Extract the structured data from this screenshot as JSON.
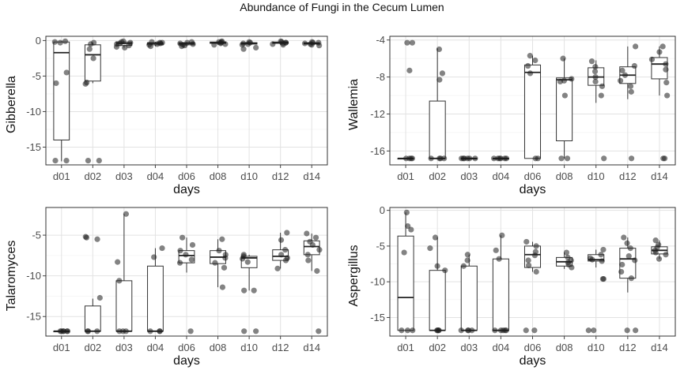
{
  "title": "Abundance of Fungi in the Cecum Lumen",
  "chart_data": [
    {
      "type": "boxplot",
      "panel": "top-left",
      "ylabel": "Gibberella",
      "xlabel": "days",
      "categories": [
        "d01",
        "d02",
        "d03",
        "d04",
        "d06",
        "d08",
        "d10",
        "d12",
        "d14"
      ],
      "ylim": [
        -17.5,
        0.6
      ],
      "yticks": [
        0,
        -5,
        -10,
        -15
      ],
      "grid": true,
      "boxes": [
        {
          "q1": -14.0,
          "median": -1.7,
          "q3": -0.2,
          "whisker_low": -17.0,
          "whisker_high": -0.1
        },
        {
          "q1": -5.7,
          "median": -2.0,
          "q3": -0.6,
          "whisker_low": -6.0,
          "whisker_high": -0.3
        },
        {
          "q1": -0.7,
          "median": -0.4,
          "q3": -0.2,
          "whisker_low": -1.0,
          "whisker_high": -0.1
        },
        {
          "q1": -0.6,
          "median": -0.4,
          "q3": -0.3,
          "whisker_low": -0.8,
          "whisker_high": -0.2
        },
        {
          "q1": -0.6,
          "median": -0.4,
          "q3": -0.3,
          "whisker_low": -0.8,
          "whisker_high": -0.2
        },
        {
          "q1": -0.4,
          "median": -0.3,
          "q3": -0.2,
          "whisker_low": -0.6,
          "whisker_high": -0.1
        },
        {
          "q1": -0.5,
          "median": -0.4,
          "q3": -0.3,
          "whisker_low": -0.6,
          "whisker_high": -0.2
        },
        {
          "q1": -0.4,
          "median": -0.3,
          "q3": -0.2,
          "whisker_low": -0.6,
          "whisker_high": -0.1
        },
        {
          "q1": -0.5,
          "median": -0.4,
          "q3": -0.3,
          "whisker_low": -0.6,
          "whisker_high": -0.2
        }
      ],
      "points": [
        [
          -0.1,
          -0.2,
          -0.3,
          -4.5,
          -6.0,
          -16.9,
          -16.9
        ],
        [
          -0.3,
          -0.5,
          -1.2,
          -2.5,
          -5.9,
          -6.1,
          -16.9,
          -16.9
        ],
        [
          -0.1,
          -0.2,
          -0.3,
          -0.5,
          -0.7,
          -0.9,
          -1.0,
          -0.4
        ],
        [
          -0.2,
          -0.3,
          -0.5,
          -0.6,
          -0.8,
          -0.4,
          -0.3
        ],
        [
          -0.2,
          -0.3,
          -0.5,
          -0.6,
          -0.8,
          -0.4,
          -0.7
        ],
        [
          -0.1,
          -0.2,
          -0.3,
          -0.5,
          -0.4,
          -0.6,
          -0.2
        ],
        [
          -0.2,
          -0.3,
          -0.4,
          -0.5,
          -1.0,
          -1.2,
          -0.6
        ],
        [
          -0.1,
          -0.2,
          -0.3,
          -0.5,
          -0.6,
          -0.4,
          -0.3
        ],
        [
          -0.2,
          -0.3,
          -0.4,
          -0.6,
          -0.7,
          -0.5,
          -0.3
        ]
      ]
    },
    {
      "type": "boxplot",
      "panel": "top-right",
      "ylabel": "Wallemia",
      "xlabel": "days",
      "categories": [
        "d01",
        "d02",
        "d03",
        "d04",
        "d06",
        "d08",
        "d10",
        "d12",
        "d14"
      ],
      "ylim": [
        -17.5,
        -3.6
      ],
      "yticks": [
        -4,
        -8,
        -12,
        -16
      ],
      "grid": true,
      "boxes": [
        {
          "q1": -16.8,
          "median": -16.8,
          "q3": -16.8,
          "whisker_low": -16.8,
          "whisker_high": -16.8
        },
        {
          "q1": -16.8,
          "median": -16.8,
          "q3": -10.6,
          "whisker_low": -16.8,
          "whisker_high": -4.9
        },
        {
          "q1": -16.8,
          "median": -16.8,
          "q3": -16.8,
          "whisker_low": -16.8,
          "whisker_high": -16.8
        },
        {
          "q1": -16.8,
          "median": -16.8,
          "q3": -16.8,
          "whisker_low": -16.8,
          "whisker_high": -16.8
        },
        {
          "q1": -16.8,
          "median": -7.5,
          "q3": -6.7,
          "whisker_low": -16.8,
          "whisker_high": -5.7
        },
        {
          "q1": -14.9,
          "median": -8.3,
          "q3": -8.1,
          "whisker_low": -16.8,
          "whisker_high": -6.0
        },
        {
          "q1": -8.9,
          "median": -8.0,
          "q3": -7.0,
          "whisker_low": -10.8,
          "whisker_high": -6.2
        },
        {
          "q1": -8.7,
          "median": -7.8,
          "q3": -6.9,
          "whisker_low": -10.4,
          "whisker_high": -4.7
        },
        {
          "q1": -8.2,
          "median": -6.6,
          "q3": -5.9,
          "whisker_low": -10.0,
          "whisker_high": -4.7
        }
      ],
      "points": [
        [
          -4.3,
          -4.3,
          -7.3,
          -16.8,
          -16.8,
          -16.8,
          -16.8
        ],
        [
          -5.0,
          -7.6,
          -8.3,
          -16.8,
          -16.8,
          -16.8,
          -16.8
        ],
        [
          -16.8,
          -16.8,
          -16.8,
          -16.8,
          -16.8,
          -16.8
        ],
        [
          -16.8,
          -16.8,
          -16.8,
          -16.8,
          -16.8,
          -16.8
        ],
        [
          -5.7,
          -6.2,
          -6.8,
          -7.6,
          -16.8,
          -16.8
        ],
        [
          -6.0,
          -8.2,
          -8.4,
          -8.5,
          -10.0,
          -16.8,
          -16.8
        ],
        [
          -6.3,
          -6.9,
          -7.4,
          -8.0,
          -8.5,
          -9.0,
          -10.0,
          -16.8
        ],
        [
          -4.7,
          -6.8,
          -7.3,
          -7.8,
          -8.4,
          -9.0,
          -9.6,
          -16.8
        ],
        [
          -4.7,
          -5.3,
          -6.1,
          -6.6,
          -7.2,
          -8.6,
          -10.0,
          -16.8,
          -16.8
        ]
      ]
    },
    {
      "type": "boxplot",
      "panel": "bottom-left",
      "ylabel": "Talaromyces",
      "xlabel": "days",
      "categories": [
        "d01",
        "d02",
        "d03",
        "d04",
        "d06",
        "d08",
        "d10",
        "d12",
        "d14"
      ],
      "ylim": [
        -17.4,
        -1.6
      ],
      "yticks": [
        -5,
        -10,
        -15
      ],
      "grid": true,
      "boxes": [
        {
          "q1": -16.8,
          "median": -16.8,
          "q3": -16.8,
          "whisker_low": -16.8,
          "whisker_high": -16.8
        },
        {
          "q1": -16.8,
          "median": -16.8,
          "q3": -13.7,
          "whisker_low": -16.8,
          "whisker_high": -12.8
        },
        {
          "q1": -16.8,
          "median": -16.8,
          "q3": -10.6,
          "whisker_low": -16.8,
          "whisker_high": -2.4
        },
        {
          "q1": -16.8,
          "median": -16.8,
          "q3": -8.8,
          "whisker_low": -16.8,
          "whisker_high": -6.6
        },
        {
          "q1": -8.4,
          "median": -7.5,
          "q3": -6.9,
          "whisker_low": -9.6,
          "whisker_high": -5.3
        },
        {
          "q1": -8.5,
          "median": -7.7,
          "q3": -6.9,
          "whisker_low": -11.4,
          "whisker_high": -5.5
        },
        {
          "q1": -9.0,
          "median": -7.8,
          "q3": -7.6,
          "whisker_low": -11.8,
          "whisker_high": -7.4
        },
        {
          "q1": -8.1,
          "median": -7.6,
          "q3": -6.8,
          "whisker_low": -9.1,
          "whisker_high": -4.7
        },
        {
          "q1": -7.4,
          "median": -6.4,
          "q3": -5.7,
          "whisker_low": -9.4,
          "whisker_high": -4.8
        }
      ],
      "points": [
        [
          -16.8,
          -16.8,
          -16.8,
          -16.8,
          -16.8,
          -16.8
        ],
        [
          -5.2,
          -5.3,
          -5.5,
          -12.7,
          -16.8,
          -16.8,
          -16.8
        ],
        [
          -2.4,
          -8.3,
          -10.6,
          -16.8,
          -16.8,
          -16.8
        ],
        [
          -6.6,
          -7.7,
          -16.8,
          -16.8,
          -16.8
        ],
        [
          -5.3,
          -6.2,
          -6.9,
          -7.4,
          -8.0,
          -8.4,
          -16.8
        ],
        [
          -5.5,
          -6.9,
          -7.4,
          -7.8,
          -8.4,
          -9.0,
          -11.4
        ],
        [
          -7.4,
          -7.6,
          -7.9,
          -8.3,
          -11.8,
          -11.8,
          -16.8,
          -16.8
        ],
        [
          -4.7,
          -5.6,
          -6.8,
          -7.4,
          -7.8,
          -8.1,
          -9.1
        ],
        [
          -4.8,
          -5.3,
          -5.8,
          -6.2,
          -6.8,
          -7.4,
          -8.1,
          -9.4,
          -16.8
        ]
      ]
    },
    {
      "type": "boxplot",
      "panel": "bottom-right",
      "ylabel": "Aspergillus",
      "xlabel": "days",
      "categories": [
        "d01",
        "d02",
        "d03",
        "d04",
        "d06",
        "d08",
        "d10",
        "d12",
        "d14"
      ],
      "ylim": [
        -17.6,
        0.4
      ],
      "yticks": [
        0,
        -5,
        -10,
        -15
      ],
      "grid": true,
      "boxes": [
        {
          "q1": -16.8,
          "median": -12.2,
          "q3": -3.6,
          "whisker_low": -16.8,
          "whisker_high": -0.3
        },
        {
          "q1": -16.8,
          "median": -16.8,
          "q3": -8.4,
          "whisker_low": -16.8,
          "whisker_high": -3.8
        },
        {
          "q1": -16.8,
          "median": -16.8,
          "q3": -7.8,
          "whisker_low": -16.8,
          "whisker_high": -6.2
        },
        {
          "q1": -16.8,
          "median": -16.8,
          "q3": -6.8,
          "whisker_low": -16.8,
          "whisker_high": -3.5
        },
        {
          "q1": -8.0,
          "median": -6.2,
          "q3": -5.0,
          "whisker_low": -8.6,
          "whisker_high": -4.4
        },
        {
          "q1": -7.8,
          "median": -7.2,
          "q3": -6.6,
          "whisker_low": -8.2,
          "whisker_high": -5.9
        },
        {
          "q1": -7.1,
          "median": -6.9,
          "q3": -6.2,
          "whisker_low": -8.0,
          "whisker_high": -5.5
        },
        {
          "q1": -9.5,
          "median": -6.8,
          "q3": -5.3,
          "whisker_low": -11.5,
          "whisker_high": -3.8
        },
        {
          "q1": -6.1,
          "median": -5.6,
          "q3": -5.1,
          "whisker_low": -6.8,
          "whisker_high": -4.2
        }
      ],
      "points": [
        [
          -0.3,
          -2.2,
          -2.7,
          -5.9,
          -16.8,
          -16.8,
          -16.8
        ],
        [
          -3.8,
          -5.3,
          -7.8,
          -8.4,
          -16.8,
          -16.8,
          -16.8,
          -16.8
        ],
        [
          -6.2,
          -7.0,
          -7.8,
          -16.8,
          -16.8,
          -16.8,
          -16.8
        ],
        [
          -3.5,
          -5.6,
          -6.8,
          -16.8,
          -16.8,
          -16.8,
          -16.8,
          -16.8
        ],
        [
          -4.4,
          -5.0,
          -5.8,
          -6.3,
          -7.0,
          -7.7,
          -8.6,
          -16.8,
          -16.8
        ],
        [
          -5.9,
          -6.6,
          -7.0,
          -7.3,
          -7.6,
          -8.0
        ],
        [
          -5.5,
          -6.2,
          -6.7,
          -6.9,
          -7.1,
          -9.6,
          -9.6,
          -16.8,
          -16.8
        ],
        [
          -3.8,
          -4.6,
          -5.3,
          -6.4,
          -7.0,
          -7.6,
          -8.6,
          -9.5,
          -16.8,
          -16.8
        ],
        [
          -4.2,
          -4.8,
          -5.2,
          -5.6,
          -5.9,
          -6.2,
          -6.8
        ]
      ]
    }
  ]
}
